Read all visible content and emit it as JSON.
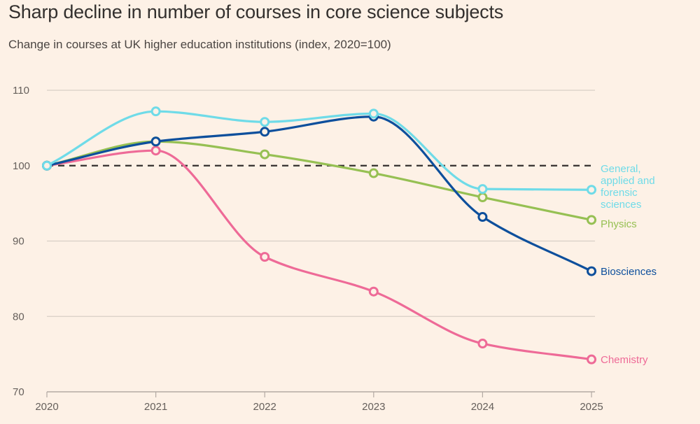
{
  "title": "Sharp decline in number of courses in core science subjects",
  "subtitle": "Change in courses at UK higher education institutions (index, 2020=100)",
  "chart_data": {
    "type": "line",
    "title": "Sharp decline in number of courses in core science subjects",
    "subtitle": "Change in courses at UK higher education institutions (index, 2020=100)",
    "xlabel": "",
    "ylabel": "",
    "x": [
      "2020",
      "2021",
      "2022",
      "2023",
      "2024",
      "2025"
    ],
    "ylim": [
      70,
      110
    ],
    "yticks": [
      "70",
      "80",
      "90",
      "100",
      "110"
    ],
    "grid": true,
    "reference_line": {
      "value": 100,
      "style": "dashed"
    },
    "legend": "direct labels at line ends (right)",
    "series": [
      {
        "name": "General, applied and forensic sciences",
        "label_lines": [
          "General,",
          "applied and",
          "forensic",
          "sciences"
        ],
        "color": "#6fdbe8",
        "values": [
          100,
          107.2,
          105.8,
          106.9,
          96.9,
          96.8
        ]
      },
      {
        "name": "Biosciences",
        "label_lines": [
          "Biosciences"
        ],
        "color": "#0d4f9c",
        "values": [
          100,
          103.2,
          104.5,
          106.5,
          93.2,
          86.0
        ]
      },
      {
        "name": "Physics",
        "label_lines": [
          "Physics"
        ],
        "color": "#96c053",
        "values": [
          100,
          103.2,
          101.5,
          99.0,
          95.8,
          92.8
        ]
      },
      {
        "name": "Chemistry",
        "label_lines": [
          "Chemistry"
        ],
        "color": "#ee6a97",
        "values": [
          100,
          102.0,
          87.9,
          83.3,
          76.4,
          74.3
        ]
      }
    ]
  }
}
